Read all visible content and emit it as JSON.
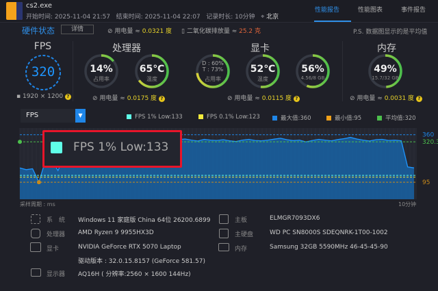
{
  "header": {
    "process": "cs2.exe",
    "start_label": "开始时间:",
    "start": "2025-11-04 21:57",
    "end_label": "结束时间:",
    "end": "2025-11-04 22:07",
    "duration_label": "记录时长:",
    "duration": "10分钟",
    "location": "北京",
    "tabs": [
      {
        "label": "性能报告",
        "active": true
      },
      {
        "label": "性能图表",
        "active": false
      },
      {
        "label": "事件报告",
        "active": false
      }
    ]
  },
  "status": {
    "title": "硬件状态",
    "detail_button": "详情",
    "power_label": "用电量 ≈",
    "power": "0.0321 度",
    "co2_label": "二氧化碳排放量 ≈",
    "co2": "25.2 克",
    "note": "P.S. 数据图显示的是平均值"
  },
  "fps": {
    "title": "FPS",
    "value": "320",
    "resolution": "1920 × 1200"
  },
  "cpu": {
    "title": "处理器",
    "usage": "14%",
    "usage_label": "占用率",
    "usage_frac": 0.14,
    "temp": "65℃",
    "temp_label": "温度",
    "temp_frac": 0.65,
    "power_label": "用电量 ≈",
    "power": "0.0175 度"
  },
  "gpu": {
    "title": "显卡",
    "d": "D : 60%",
    "t": "T : 73%",
    "usage_label": "占用率",
    "usage_frac": 0.73,
    "temp": "52℃",
    "temp_label": "温度",
    "temp_frac": 0.52,
    "vram": "56%",
    "vram_sub": "4.56/8 GB",
    "vram_frac": 0.56,
    "power_label": "用电量 ≈",
    "power": "0.0115 度"
  },
  "mem": {
    "title": "内存",
    "usage": "49%",
    "sub": "15.7/32 GB",
    "usage_frac": 0.49,
    "power_label": "用电量 ≈",
    "power": "0.0031 度"
  },
  "metric_select": "FPS",
  "legend": [
    {
      "label": "FPS 1% Low:133",
      "color": "#5fffe8"
    },
    {
      "label": "FPS 0.1% Low:123",
      "color": "#f2ea3c"
    },
    {
      "label": "最大值:360",
      "color": "#1f86e8"
    },
    {
      "label": "最小值:95",
      "color": "#f0a01a"
    },
    {
      "label": "平均值:320",
      "color": "#4cbf4c"
    }
  ],
  "highlight": "FPS 1% Low:133",
  "chart_data": {
    "type": "area",
    "xlabel": "采样周期 : ms",
    "x_end_label": "10分钟",
    "ylim": [
      0,
      397
    ],
    "ref_lines": [
      {
        "label": "360",
        "value": 360,
        "color": "#1f86e8"
      },
      {
        "label": "320.32",
        "value": 320.32,
        "color": "#4cbf4c"
      },
      {
        "label": "95",
        "value": 95,
        "color": "#c98a1a"
      },
      {
        "value": 133,
        "color": "#5fffe8"
      },
      {
        "value": 123,
        "color": "#f2ea3c"
      }
    ],
    "values": [
      175,
      165,
      170,
      95,
      215,
      220,
      160,
      240,
      250,
      255,
      270,
      300,
      310,
      320,
      318,
      322,
      325,
      315,
      320,
      324,
      300,
      330,
      332,
      335,
      328,
      333,
      336,
      330,
      325,
      334,
      330,
      328,
      332,
      326,
      322,
      330,
      334,
      328,
      326,
      330,
      335,
      340,
      332,
      327,
      330,
      320,
      328,
      334,
      330,
      326,
      333,
      338,
      345,
      336,
      330,
      325,
      332,
      334,
      328,
      330,
      326,
      180,
      175
    ]
  },
  "hardware": {
    "left": [
      {
        "label": "系　统",
        "value": "Windows 11 家庭版 China 64位 26200.6899"
      },
      {
        "label": "处理器",
        "value": "AMD Ryzen 9 9955HX3D"
      },
      {
        "label": "显卡",
        "value": "NVIDIA GeForce RTX 5070 Laptop",
        "sub": "驱动版本 : 32.0.15.8157 (GeForce 581.57)"
      },
      {
        "label": "显示器",
        "value": "AQ16H ( 分辨率:2560 × 1600 144Hz)"
      }
    ],
    "right": [
      {
        "label": "主板",
        "value": "ELMGR7093DX6"
      },
      {
        "label": "主硬盘",
        "value": "WD PC SN8000S SDEQNRK-1T00-1002"
      },
      {
        "label": "内存",
        "value": "Samsung 32GB 5590MHz 46-45-45-90"
      }
    ]
  }
}
